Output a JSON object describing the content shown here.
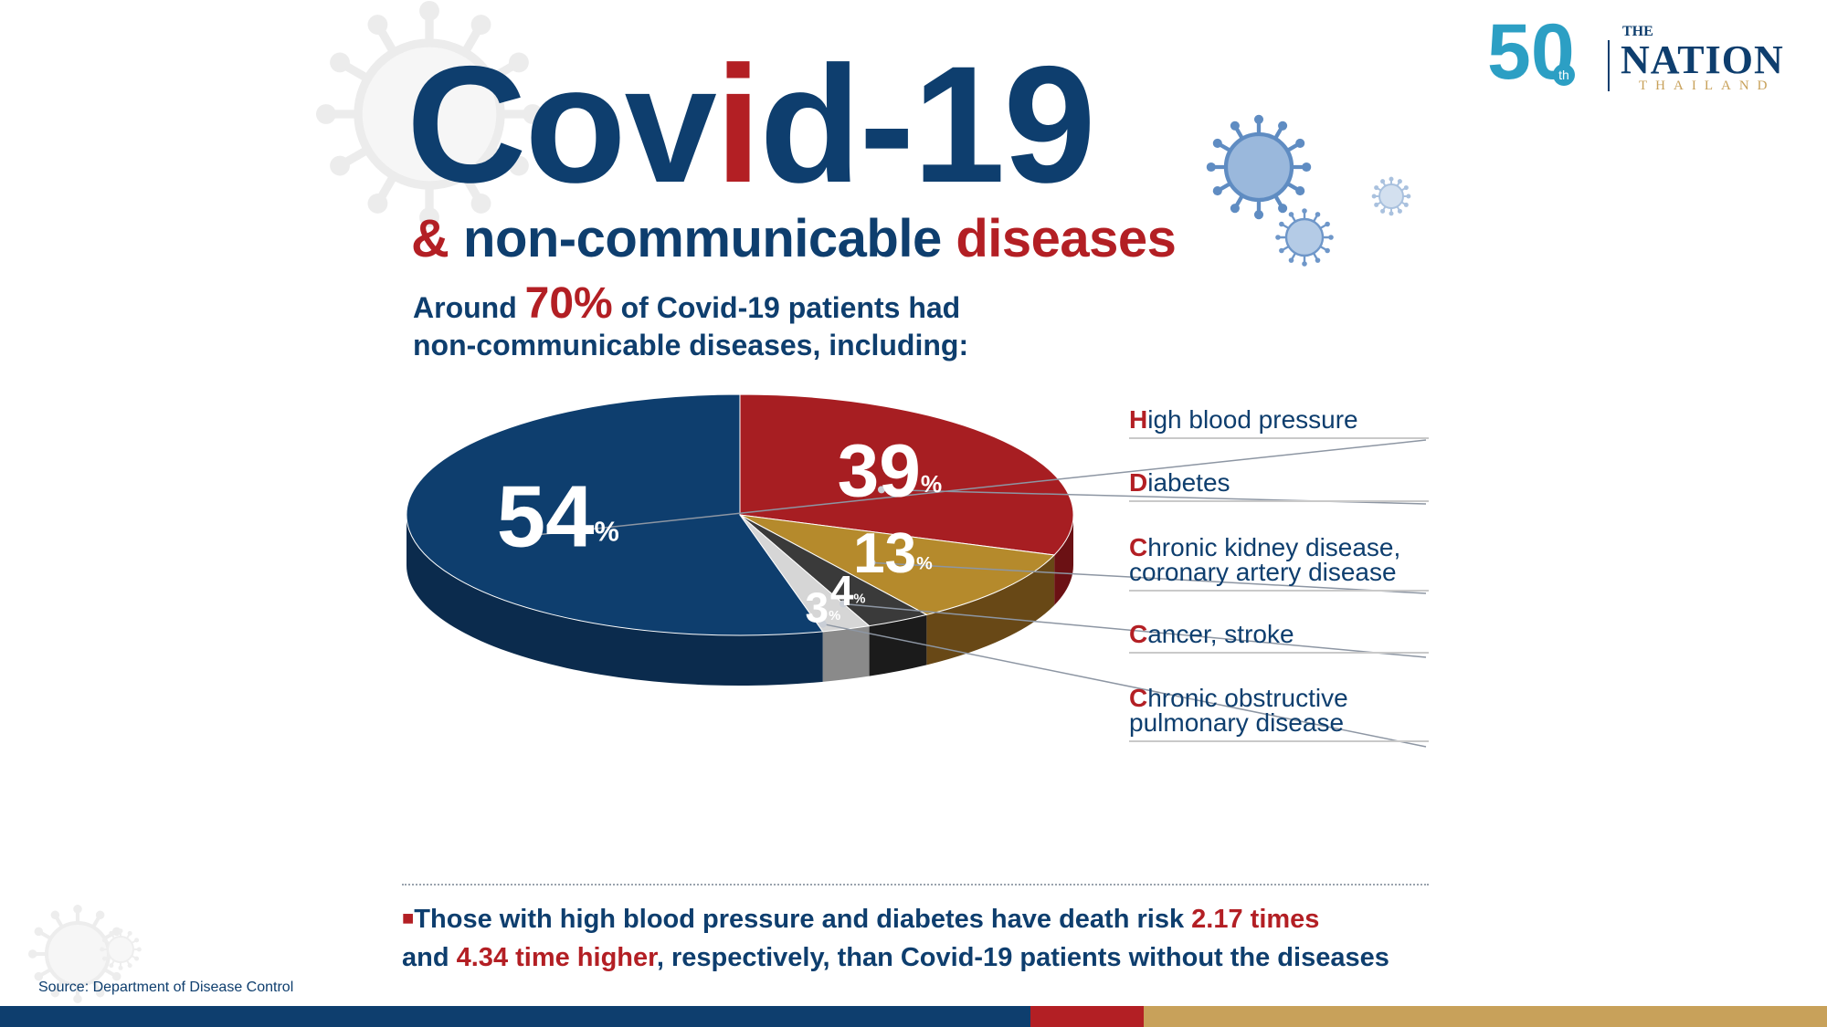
{
  "header": {
    "title_pre": "Cov",
    "title_accent": "i",
    "title_post": "d-19",
    "subtitle_amp": "&",
    "subtitle_mid": "non-communicable",
    "subtitle_end": "diseases",
    "intro_pre": "Around",
    "intro_pct": "70%",
    "intro_line1_post": "of Covid-19 patients had",
    "intro_line2": "non-communicable diseases, including:"
  },
  "brand": {
    "anniversary": "50",
    "anniversary_suffix": "th",
    "the": "THE",
    "name": "NATION",
    "country": "THAILAND"
  },
  "chart_data": {
    "type": "pie",
    "style": "3d",
    "categories": [
      "High blood pressure",
      "Diabetes",
      "Chronic kidney disease, coronary artery disease",
      "Cancer, stroke",
      "Chronic obstructive pulmonary disease"
    ],
    "values": [
      54,
      39,
      13,
      4,
      3
    ],
    "unit": "%",
    "value_labels": [
      {
        "num": "54",
        "unit": "%"
      },
      {
        "num": "39",
        "unit": "%"
      },
      {
        "num": "13",
        "unit": "%"
      },
      {
        "num": "4",
        "unit": "%"
      },
      {
        "num": "3",
        "unit": "%"
      }
    ],
    "colors": [
      "#0e3e6e",
      "#a71e22",
      "#b58a2c",
      "#3a3a3a",
      "#d6d6d6"
    ],
    "side_colors": [
      "#0b2b4d",
      "#6b1114",
      "#684816",
      "#1b1b1b",
      "#8a8a8a"
    ],
    "legend_position": "right"
  },
  "legend": [
    {
      "first": "H",
      "rest": "igh blood pressure",
      "line2": ""
    },
    {
      "first": "D",
      "rest": "iabetes",
      "line2": ""
    },
    {
      "first": "C",
      "rest": "hronic kidney disease,",
      "line2": "coronary artery disease"
    },
    {
      "first": "C",
      "rest": "ancer, stroke",
      "line2": ""
    },
    {
      "first": "C",
      "rest": "hronic obstructive",
      "line2": "pulmonary disease"
    }
  ],
  "note": {
    "bullet": "■",
    "text1": "Those with high blood pressure and diabetes have death risk",
    "hl1": "2.17 times",
    "text2": "and",
    "hl2": "4.34 time higher",
    "text3": ", respectively, than Covid-19 patients without the diseases"
  },
  "footer": {
    "source": "Source: Department of Disease Control"
  },
  "colors": {
    "navy": "#0e3e6e",
    "red": "#b31f24",
    "gold": "#c8a15a",
    "bar_blue": "#0e3e6e",
    "bar_red": "#b31f24",
    "bar_gold": "#c8a15a"
  }
}
